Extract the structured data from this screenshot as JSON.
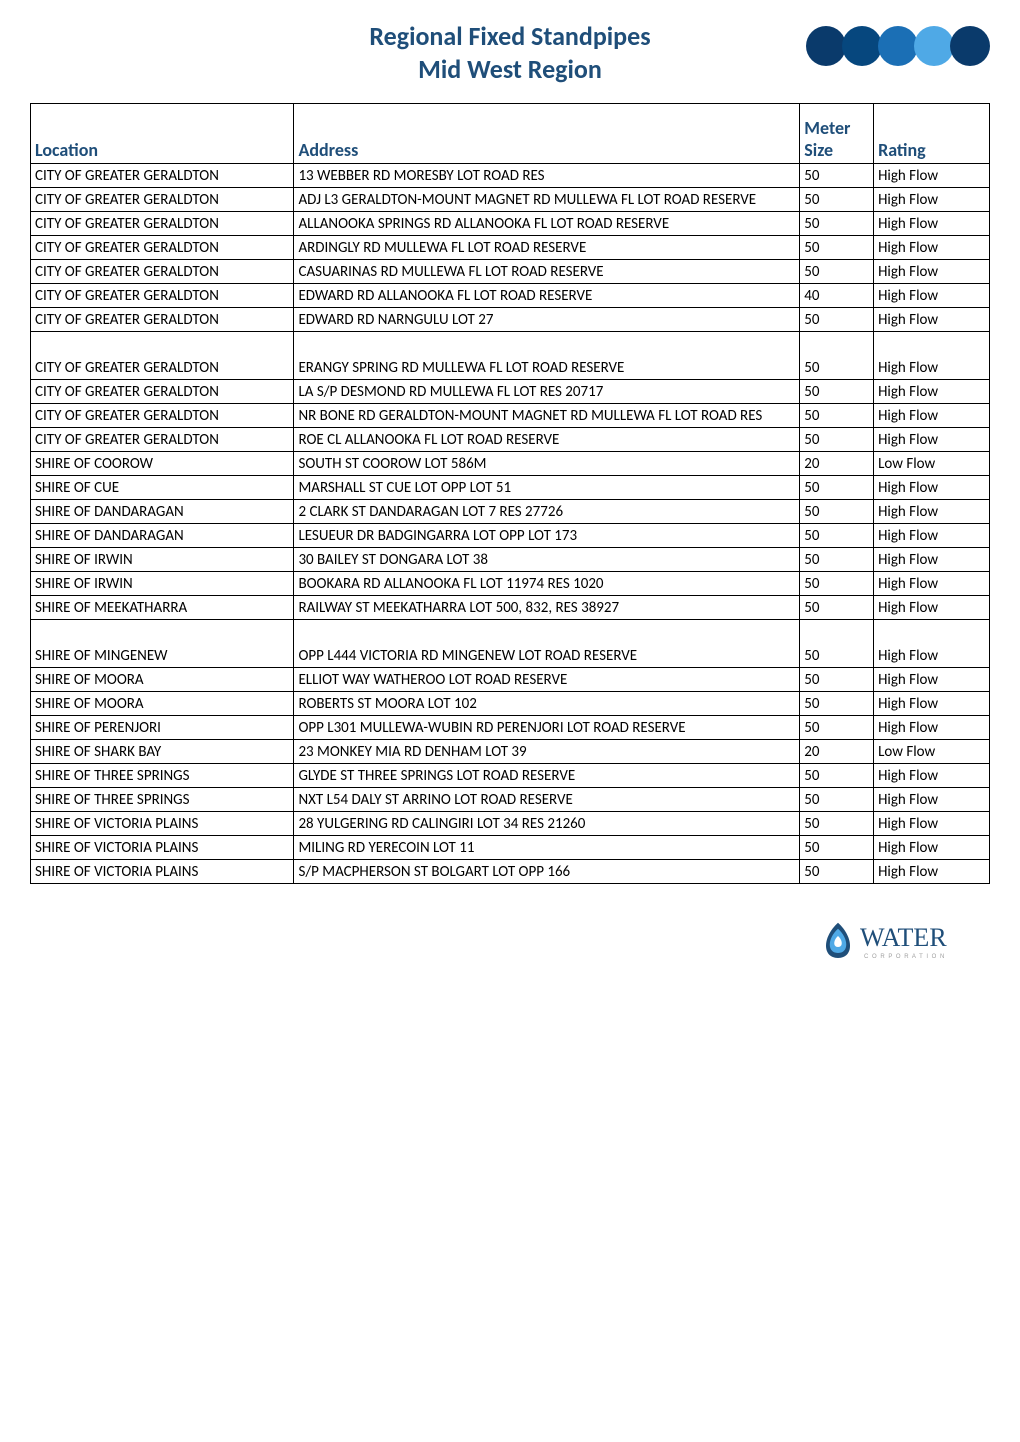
{
  "header": {
    "title_line1": "Regional Fixed Standpipes",
    "title_line2": "Mid West Region",
    "title_color": "#1f4e79",
    "title_fontsize": 26,
    "dot_colors": [
      "#0a3a6b",
      "#06477e",
      "#1b6fb5",
      "#4fa9e6",
      "#0a3a6b"
    ],
    "dot_radius": 20,
    "dot_gap": 36
  },
  "table": {
    "columns": {
      "location": "Location",
      "address": "Address",
      "size": "Meter Size",
      "rating": "Rating"
    },
    "header_color": "#1f4e79",
    "header_fontsize": 18,
    "cell_fontsize": 15,
    "border_color": "#000000",
    "rows": [
      {
        "location": "CITY OF GREATER GERALDTON",
        "address": "13 WEBBER RD MORESBY LOT ROAD RES",
        "size": "50",
        "rating": "High Flow"
      },
      {
        "location": "CITY OF GREATER GERALDTON",
        "address": "ADJ L3 GERALDTON-MOUNT MAGNET RD MULLEWA FL LOT ROAD RESERVE",
        "size": "50",
        "rating": "High Flow"
      },
      {
        "location": "CITY OF GREATER GERALDTON",
        "address": "ALLANOOKA SPRINGS RD ALLANOOKA FL LOT ROAD RESERVE",
        "size": "50",
        "rating": "High Flow"
      },
      {
        "location": "CITY OF GREATER GERALDTON",
        "address": "ARDINGLY RD MULLEWA FL LOT ROAD RESERVE",
        "size": "50",
        "rating": "High Flow"
      },
      {
        "location": "CITY OF GREATER GERALDTON",
        "address": "CASUARINAS RD MULLEWA FL LOT ROAD RESERVE",
        "size": "50",
        "rating": "High Flow"
      },
      {
        "location": "CITY OF GREATER GERALDTON",
        "address": "EDWARD RD ALLANOOKA FL LOT ROAD RESERVE",
        "size": "40",
        "rating": "High Flow"
      },
      {
        "location": "CITY OF GREATER GERALDTON",
        "address": "EDWARD RD NARNGULU LOT 27",
        "size": "50",
        "rating": "High Flow"
      },
      {
        "location": "CITY OF GREATER GERALDTON",
        "address": "ERANGY SPRING RD MULLEWA FL LOT ROAD RESERVE",
        "size": "50",
        "rating": "High Flow",
        "tall": true
      },
      {
        "location": "CITY OF GREATER GERALDTON",
        "address": "LA S/P DESMOND RD MULLEWA FL LOT RES 20717",
        "size": "50",
        "rating": "High Flow"
      },
      {
        "location": "CITY OF GREATER GERALDTON",
        "address": "NR BONE RD GERALDTON-MOUNT MAGNET RD MULLEWA FL LOT ROAD RES",
        "size": "50",
        "rating": "High Flow"
      },
      {
        "location": "CITY OF GREATER GERALDTON",
        "address": "ROE CL ALLANOOKA FL LOT ROAD RESERVE",
        "size": "50",
        "rating": "High Flow"
      },
      {
        "location": "SHIRE OF COOROW",
        "address": "SOUTH ST COOROW LOT 586M",
        "size": "20",
        "rating": "Low Flow"
      },
      {
        "location": "SHIRE OF CUE",
        "address": "MARSHALL ST CUE LOT OPP LOT 51",
        "size": "50",
        "rating": "High Flow"
      },
      {
        "location": "SHIRE OF DANDARAGAN",
        "address": "2 CLARK ST DANDARAGAN LOT 7 RES 27726",
        "size": "50",
        "rating": "High Flow"
      },
      {
        "location": "SHIRE OF DANDARAGAN",
        "address": "LESUEUR DR BADGINGARRA LOT OPP LOT 173",
        "size": "50",
        "rating": "High Flow"
      },
      {
        "location": "SHIRE OF IRWIN",
        "address": "30 BAILEY ST DONGARA LOT 38",
        "size": "50",
        "rating": "High Flow"
      },
      {
        "location": "SHIRE OF IRWIN",
        "address": "BOOKARA RD ALLANOOKA FL LOT 11974 RES 1020",
        "size": "50",
        "rating": "High Flow"
      },
      {
        "location": "SHIRE OF MEEKATHARRA",
        "address": "RAILWAY ST MEEKATHARRA LOT 500, 832,  RES 38927",
        "size": "50",
        "rating": "High Flow"
      },
      {
        "location": "SHIRE OF MINGENEW",
        "address": "OPP L444 VICTORIA RD MINGENEW LOT ROAD RESERVE",
        "size": "50",
        "rating": "High Flow",
        "tall": true
      },
      {
        "location": "SHIRE OF MOORA",
        "address": "ELLIOT WAY WATHEROO LOT ROAD RESERVE",
        "size": "50",
        "rating": "High Flow"
      },
      {
        "location": "SHIRE OF MOORA",
        "address": "ROBERTS ST MOORA LOT 102",
        "size": "50",
        "rating": "High Flow"
      },
      {
        "location": "SHIRE OF PERENJORI",
        "address": "OPP L301 MULLEWA-WUBIN RD PERENJORI LOT ROAD RESERVE",
        "size": "50",
        "rating": "High Flow"
      },
      {
        "location": "SHIRE OF SHARK BAY",
        "address": "23 MONKEY MIA RD DENHAM LOT 39",
        "size": "20",
        "rating": "Low Flow"
      },
      {
        "location": "SHIRE OF THREE SPRINGS",
        "address": "GLYDE ST THREE SPRINGS LOT ROAD RESERVE",
        "size": "50",
        "rating": "High Flow"
      },
      {
        "location": "SHIRE OF THREE SPRINGS",
        "address": "NXT L54 DALY ST ARRINO LOT ROAD RESERVE",
        "size": "50",
        "rating": "High Flow"
      },
      {
        "location": "SHIRE OF VICTORIA PLAINS",
        "address": "28 YULGERING RD CALINGIRI LOT 34 RES 21260",
        "size": "50",
        "rating": "High Flow"
      },
      {
        "location": "SHIRE OF VICTORIA PLAINS",
        "address": "MILING RD YERECOIN LOT 11",
        "size": "50",
        "rating": "High Flow"
      },
      {
        "location": "SHIRE OF VICTORIA PLAINS",
        "address": "S/P MACPHERSON ST BOLGART LOT OPP 166",
        "size": "50",
        "rating": "High Flow"
      }
    ]
  },
  "footer": {
    "logo_text": "WATER",
    "logo_subtext": "C O R P O R A T I O N",
    "logo_text_color": "#1f4e79",
    "logo_sub_color": "#a0a0a0",
    "drop_outer": "#1f4e79",
    "drop_mid": "#4fa9e6",
    "drop_inner": "#ffffff"
  }
}
